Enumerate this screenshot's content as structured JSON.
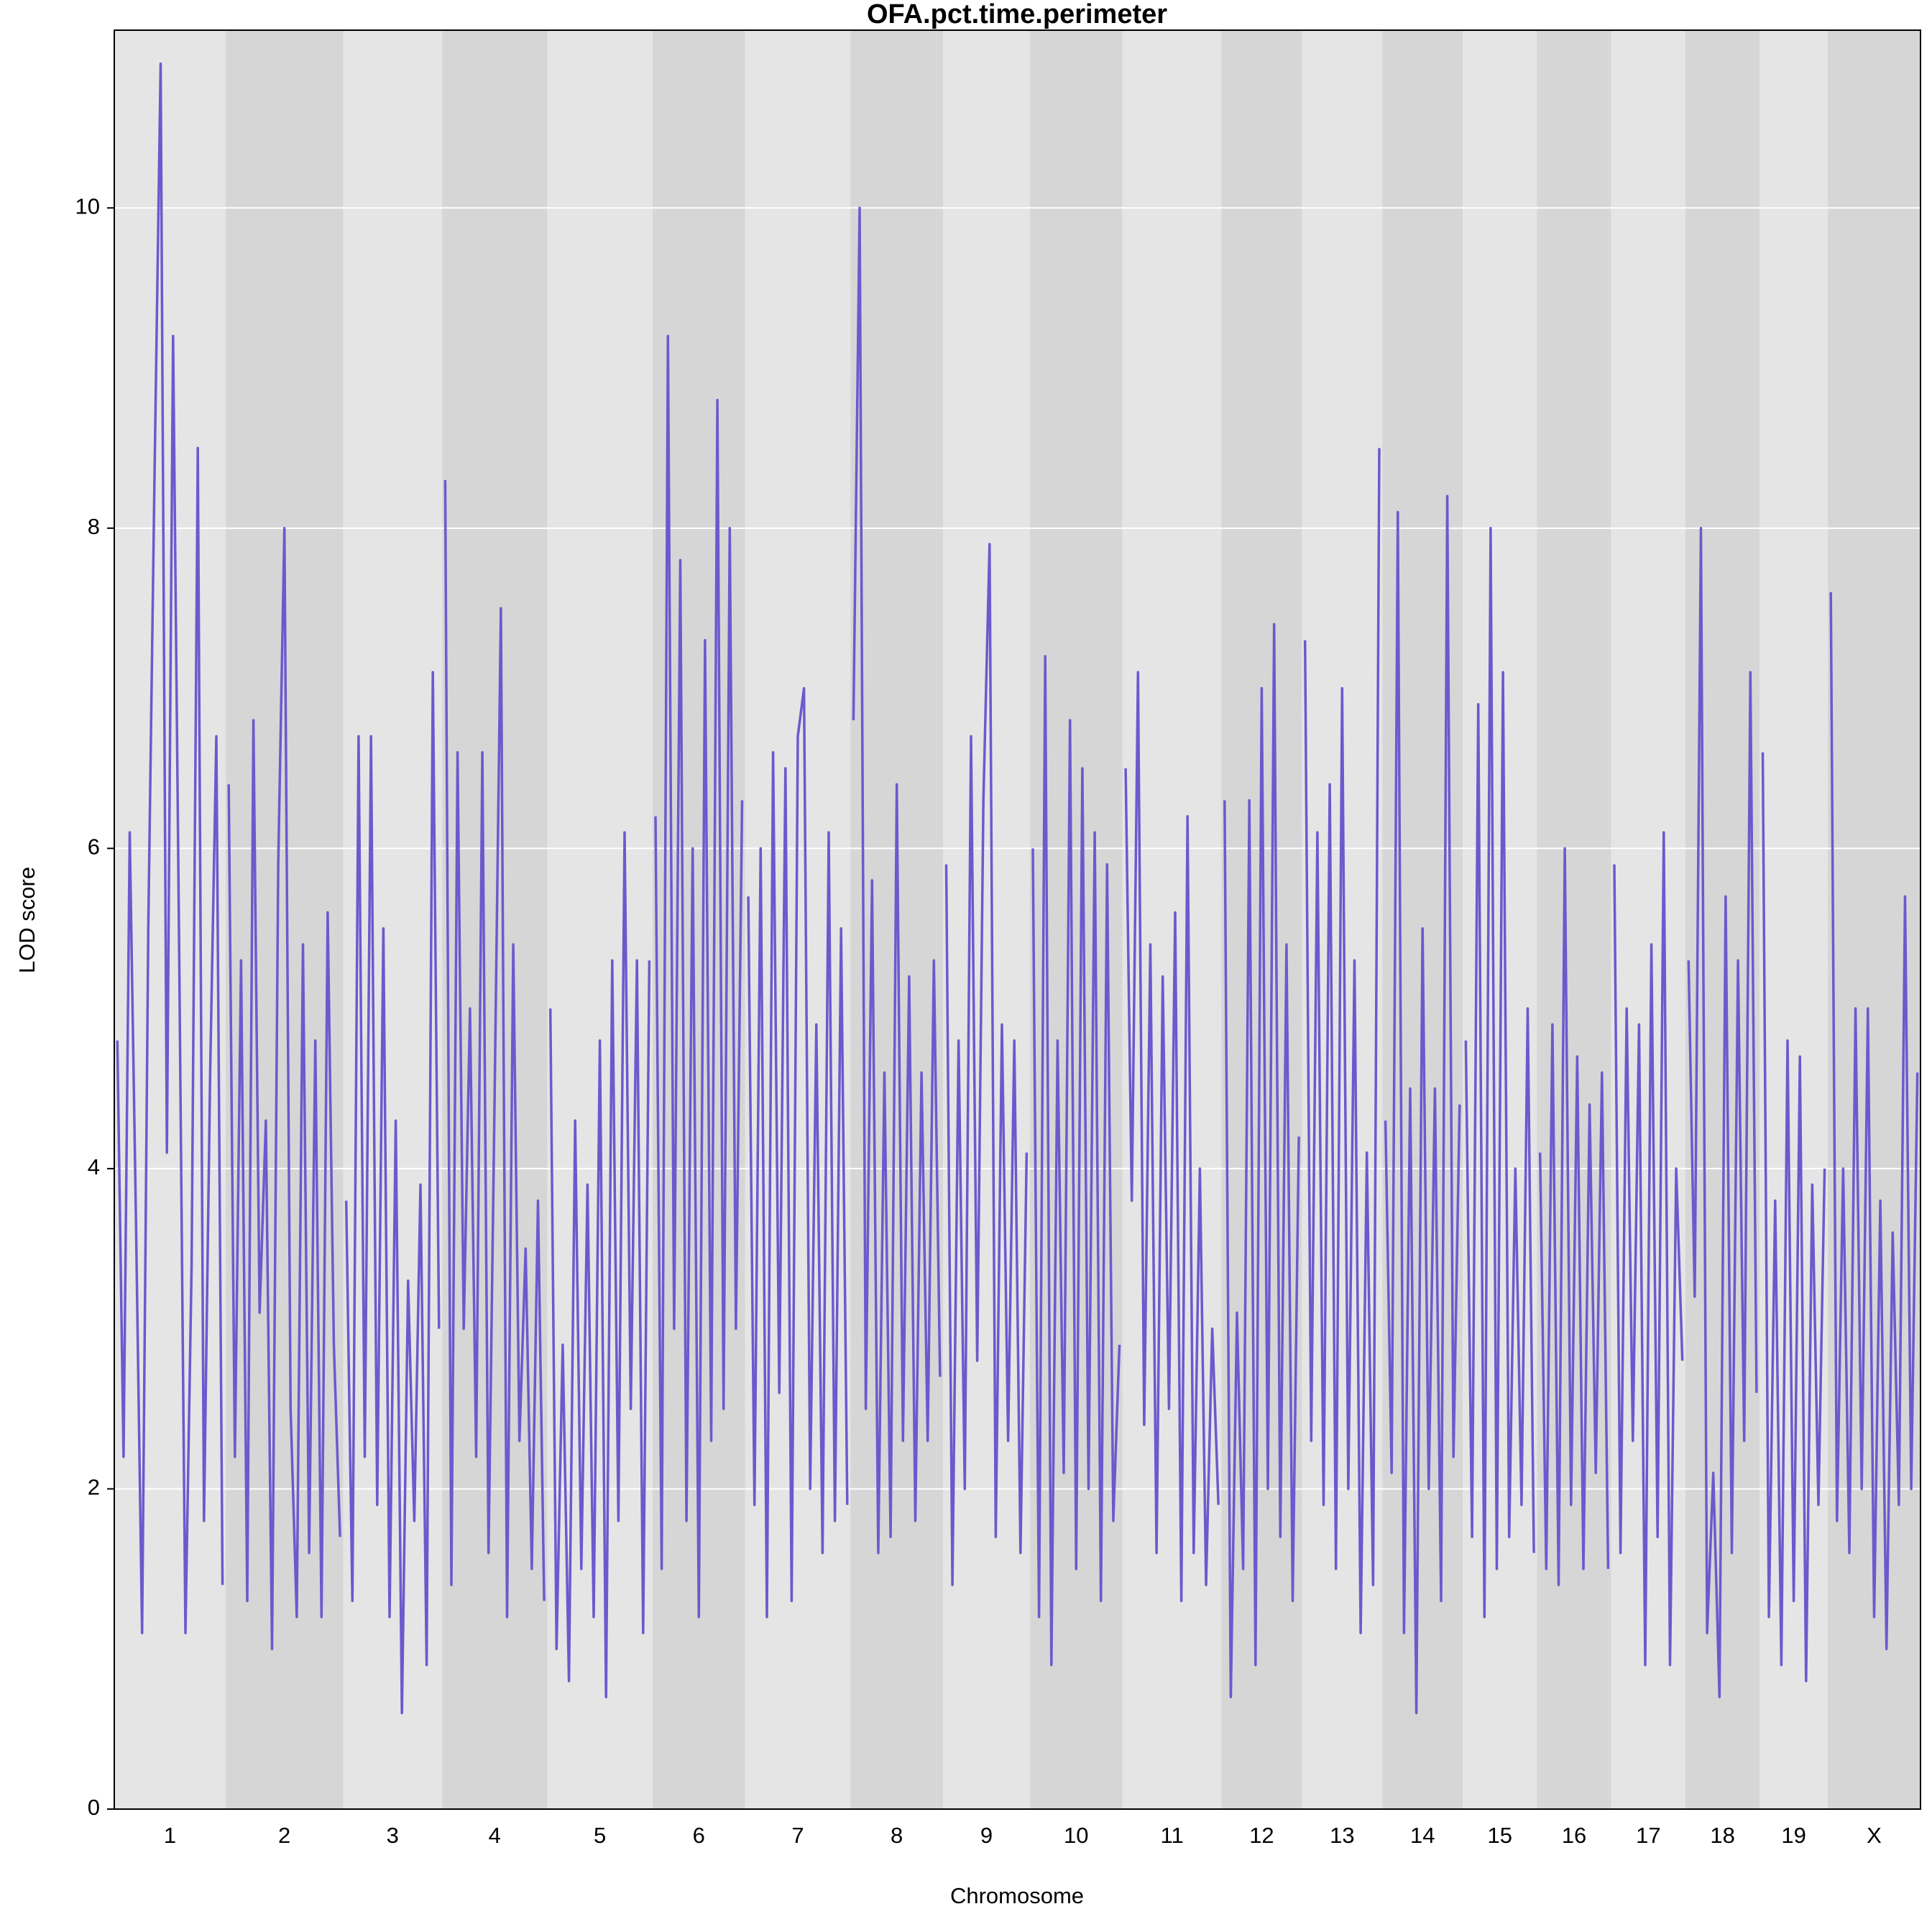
{
  "chart_data": {
    "type": "line",
    "title": "OFA.pct.time.perimeter",
    "xlabel": "Chromosome",
    "ylabel": "LOD score",
    "ylim": [
      0,
      11.11
    ],
    "yticks": [
      0,
      2,
      4,
      6,
      8,
      10
    ],
    "grid": true,
    "color": "#6a5acd",
    "band_colors": [
      "#e5e5e5",
      "#d6d6d6"
    ],
    "series": [
      {
        "name": "1",
        "values": [
          4.8,
          2.2,
          6.1,
          3.7,
          1.1,
          5.5,
          8.3,
          10.9,
          4.1,
          9.2,
          5.3,
          1.1,
          3.4,
          8.5,
          1.8,
          4.6,
          6.7,
          1.4
        ]
      },
      {
        "name": "2",
        "values": [
          6.4,
          2.2,
          5.3,
          1.3,
          6.8,
          3.1,
          4.3,
          1.0,
          5.9,
          8.0,
          2.5,
          1.2,
          5.4,
          1.6,
          4.8,
          1.2,
          5.6,
          2.9,
          1.7
        ]
      },
      {
        "name": "3",
        "values": [
          3.8,
          1.3,
          6.7,
          2.2,
          6.7,
          1.9,
          5.5,
          1.2,
          4.3,
          0.6,
          3.3,
          1.8,
          3.9,
          0.9,
          7.1,
          3.0
        ]
      },
      {
        "name": "4",
        "values": [
          8.3,
          1.4,
          6.6,
          3.0,
          5.0,
          2.2,
          6.6,
          1.6,
          4.5,
          7.5,
          1.2,
          5.4,
          2.3,
          3.5,
          1.5,
          3.8,
          1.3
        ]
      },
      {
        "name": "5",
        "values": [
          5.0,
          1.0,
          2.9,
          0.8,
          4.3,
          1.5,
          3.9,
          1.2,
          4.8,
          0.7,
          5.3,
          1.8,
          6.1,
          2.5,
          5.3,
          1.1,
          5.3
        ]
      },
      {
        "name": "6",
        "values": [
          6.2,
          1.5,
          9.2,
          3.0,
          7.8,
          1.8,
          6.0,
          1.2,
          7.3,
          2.3,
          8.8,
          2.5,
          8.0,
          3.0,
          6.3
        ]
      },
      {
        "name": "7",
        "values": [
          5.7,
          1.9,
          6.0,
          1.2,
          6.6,
          2.6,
          6.5,
          1.3,
          6.7,
          7.0,
          2.0,
          4.9,
          1.6,
          6.1,
          1.8,
          5.5,
          1.9
        ]
      },
      {
        "name": "8",
        "values": [
          6.8,
          10.0,
          2.5,
          5.8,
          1.6,
          4.6,
          1.7,
          6.4,
          2.3,
          5.2,
          1.8,
          4.6,
          2.3,
          5.3,
          2.7
        ]
      },
      {
        "name": "9",
        "values": [
          5.9,
          1.4,
          4.8,
          2.0,
          6.7,
          2.8,
          6.3,
          7.9,
          1.7,
          4.9,
          2.3,
          4.8,
          1.6,
          4.1
        ]
      },
      {
        "name": "10",
        "values": [
          6.0,
          1.2,
          7.2,
          0.9,
          4.8,
          2.1,
          6.8,
          1.5,
          6.5,
          2.0,
          6.1,
          1.3,
          5.9,
          1.8,
          2.9
        ]
      },
      {
        "name": "11",
        "values": [
          6.5,
          3.8,
          7.1,
          2.4,
          5.4,
          1.6,
          5.2,
          2.5,
          5.6,
          1.3,
          6.2,
          1.6,
          4.0,
          1.4,
          3.0,
          1.9
        ]
      },
      {
        "name": "12",
        "values": [
          6.3,
          0.7,
          3.1,
          1.5,
          6.3,
          0.9,
          7.0,
          2.0,
          7.4,
          1.7,
          5.4,
          1.3,
          4.2
        ]
      },
      {
        "name": "13",
        "values": [
          7.3,
          2.3,
          6.1,
          1.9,
          6.4,
          1.5,
          7.0,
          2.0,
          5.3,
          1.1,
          4.1,
          1.4,
          8.5
        ]
      },
      {
        "name": "14",
        "values": [
          4.3,
          2.1,
          8.1,
          1.1,
          4.5,
          0.6,
          5.5,
          2.0,
          4.5,
          1.3,
          8.2,
          2.2,
          4.4
        ]
      },
      {
        "name": "15",
        "values": [
          4.8,
          1.7,
          6.9,
          1.2,
          8.0,
          1.5,
          7.1,
          1.7,
          4.0,
          1.9,
          5.0,
          1.6
        ]
      },
      {
        "name": "16",
        "values": [
          4.1,
          1.5,
          4.9,
          1.4,
          6.0,
          1.9,
          4.7,
          1.5,
          4.4,
          2.1,
          4.6,
          1.5
        ]
      },
      {
        "name": "17",
        "values": [
          5.9,
          1.6,
          5.0,
          2.3,
          4.9,
          0.9,
          5.4,
          1.7,
          6.1,
          0.9,
          4.0,
          2.8
        ]
      },
      {
        "name": "18",
        "values": [
          5.3,
          3.2,
          8.0,
          1.1,
          2.1,
          0.7,
          5.7,
          1.6,
          5.3,
          2.3,
          7.1,
          2.6
        ]
      },
      {
        "name": "19",
        "values": [
          6.6,
          1.2,
          3.8,
          0.9,
          4.8,
          1.3,
          4.7,
          0.8,
          3.9,
          1.9,
          4.0
        ]
      },
      {
        "name": "X",
        "values": [
          7.6,
          1.8,
          4.0,
          1.6,
          5.0,
          2.0,
          5.0,
          1.2,
          3.8,
          1.0,
          3.6,
          1.9,
          5.7,
          2.0,
          4.6
        ]
      }
    ]
  }
}
